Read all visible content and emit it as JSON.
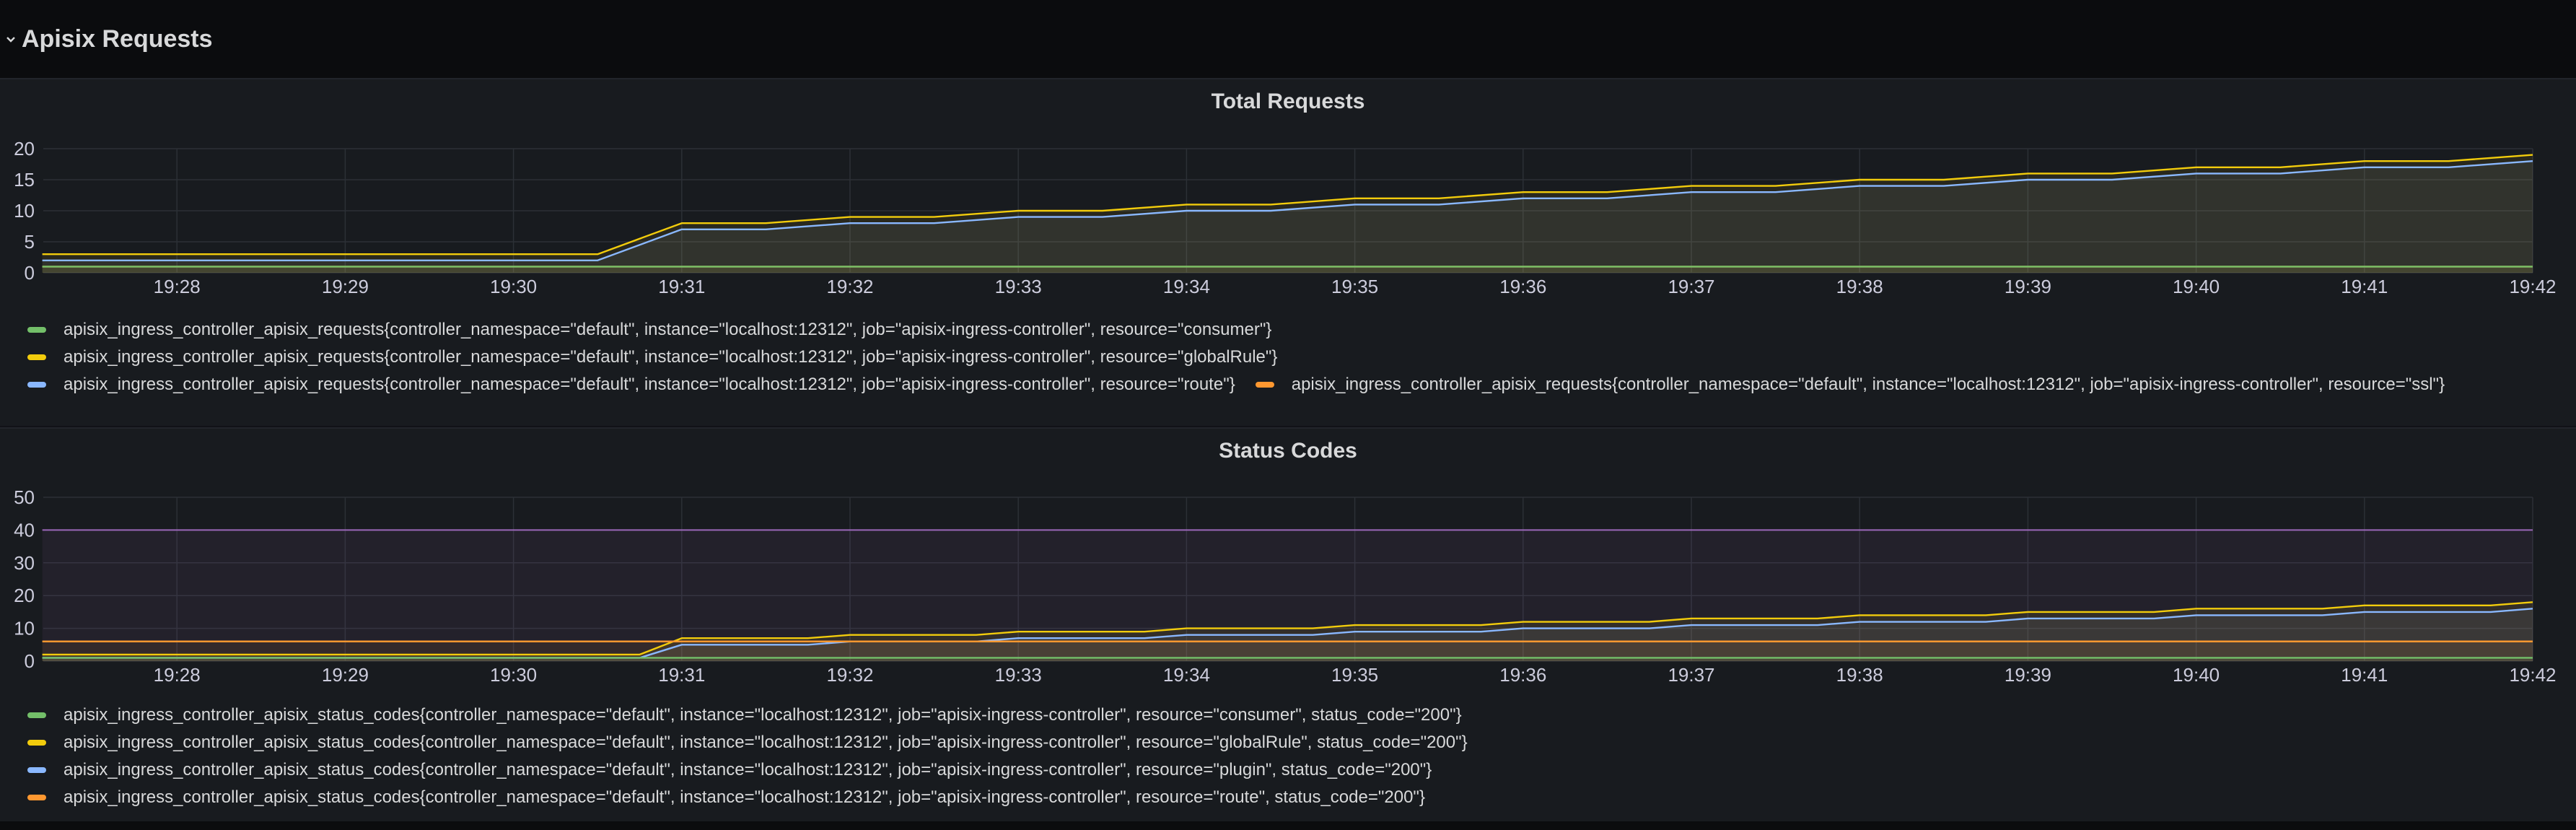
{
  "row": {
    "title": "Apisix Requests",
    "collapse_icon": "chevron-down-icon"
  },
  "colors": {
    "green": "#73bf69",
    "yellow": "#f2cc0c",
    "blue": "#8ab8ff",
    "orange": "#ff9830",
    "route_line": "#5794f2",
    "threshold": "#b877d9"
  },
  "chart_data": [
    {
      "type": "line",
      "title": "Total Requests",
      "x_ticks": [
        "19:28",
        "19:29",
        "19:30",
        "19:31",
        "19:32",
        "19:33",
        "19:34",
        "19:35",
        "19:36",
        "19:37",
        "19:38",
        "19:39",
        "19:40",
        "19:41",
        "19:42"
      ],
      "y_ticks": [
        "0",
        "5",
        "10",
        "15",
        "20"
      ],
      "ylim": [
        0,
        20
      ],
      "grid": true,
      "legend_position": "bottom",
      "x": [
        "19:27.2",
        "19:30.5",
        "19:31",
        "19:31.5",
        "19:32",
        "19:32.5",
        "19:33",
        "19:33.5",
        "19:34",
        "19:34.5",
        "19:35",
        "19:35.5",
        "19:36",
        "19:36.5",
        "19:37",
        "19:37.5",
        "19:38",
        "19:38.5",
        "19:39",
        "19:39.5",
        "19:40",
        "19:40.5",
        "19:41",
        "19:41.5",
        "19:42"
      ],
      "series": [
        {
          "name": "apisix_ingress_controller_apisix_requests{controller_namespace=\"default\", instance=\"localhost:12312\", job=\"apisix-ingress-controller\", resource=\"consumer\"}",
          "color": "#73bf69",
          "values": [
            1,
            1,
            1,
            1,
            1,
            1,
            1,
            1,
            1,
            1,
            1,
            1,
            1,
            1,
            1,
            1,
            1,
            1,
            1,
            1,
            1,
            1,
            1,
            1,
            1
          ]
        },
        {
          "name": "apisix_ingress_controller_apisix_requests{controller_namespace=\"default\", instance=\"localhost:12312\", job=\"apisix-ingress-controller\", resource=\"globalRule\"}",
          "color": "#f2cc0c",
          "values": [
            3,
            3,
            8,
            8,
            9,
            9,
            10,
            10,
            11,
            11,
            12,
            12,
            13,
            13,
            14,
            14,
            15,
            15,
            16,
            16,
            17,
            17,
            18,
            18,
            19
          ]
        },
        {
          "name": "apisix_ingress_controller_apisix_requests{controller_namespace=\"default\", instance=\"localhost:12312\", job=\"apisix-ingress-controller\", resource=\"route\"}",
          "color": "#8ab8ff",
          "values": [
            2,
            2,
            7,
            7,
            8,
            8,
            9,
            9,
            10,
            10,
            11,
            11,
            12,
            12,
            13,
            13,
            14,
            14,
            15,
            15,
            16,
            16,
            17,
            17,
            18
          ]
        },
        {
          "name": "apisix_ingress_controller_apisix_requests{controller_namespace=\"default\", instance=\"localhost:12312\", job=\"apisix-ingress-controller\", resource=\"ssl\"}",
          "color": "#ff9830",
          "values": [
            1,
            1,
            1,
            1,
            1,
            1,
            1,
            1,
            1,
            1,
            1,
            1,
            1,
            1,
            1,
            1,
            1,
            1,
            1,
            1,
            1,
            1,
            1,
            1,
            1
          ]
        }
      ]
    },
    {
      "type": "line",
      "title": "Status Codes",
      "x_ticks": [
        "19:28",
        "19:29",
        "19:30",
        "19:31",
        "19:32",
        "19:33",
        "19:34",
        "19:35",
        "19:36",
        "19:37",
        "19:38",
        "19:39",
        "19:40",
        "19:41",
        "19:42"
      ],
      "y_ticks": [
        "0",
        "10",
        "20",
        "30",
        "40",
        "50"
      ],
      "ylim": [
        0,
        50
      ],
      "grid": true,
      "legend_position": "bottom",
      "threshold": 40,
      "x": [
        "19:27.2",
        "19:30.75",
        "19:31",
        "19:31.75",
        "19:32",
        "19:32.75",
        "19:33",
        "19:33.75",
        "19:34",
        "19:34.75",
        "19:35",
        "19:35.75",
        "19:36",
        "19:36.75",
        "19:37",
        "19:37.75",
        "19:38",
        "19:38.75",
        "19:39",
        "19:39.75",
        "19:40",
        "19:40.75",
        "19:41",
        "19:41.75",
        "19:42"
      ],
      "series": [
        {
          "name": "apisix_ingress_controller_apisix_status_codes{controller_namespace=\"default\", instance=\"localhost:12312\", job=\"apisix-ingress-controller\", resource=\"consumer\", status_code=\"200\"}",
          "color": "#73bf69",
          "values": [
            1,
            1,
            1,
            1,
            1,
            1,
            1,
            1,
            1,
            1,
            1,
            1,
            1,
            1,
            1,
            1,
            1,
            1,
            1,
            1,
            1,
            1,
            1,
            1,
            1
          ]
        },
        {
          "name": "apisix_ingress_controller_apisix_status_codes{controller_namespace=\"default\", instance=\"localhost:12312\", job=\"apisix-ingress-controller\", resource=\"globalRule\", status_code=\"200\"}",
          "color": "#f2cc0c",
          "values": [
            2,
            2,
            7,
            7,
            8,
            8,
            9,
            9,
            10,
            10,
            11,
            11,
            12,
            12,
            13,
            13,
            14,
            14,
            15,
            15,
            16,
            16,
            17,
            17,
            18
          ]
        },
        {
          "name": "apisix_ingress_controller_apisix_status_codes{controller_namespace=\"default\", instance=\"localhost:12312\", job=\"apisix-ingress-controller\", resource=\"plugin\", status_code=\"200\"}",
          "color": "#8ab8ff",
          "values": [
            1,
            1,
            5,
            5,
            6,
            6,
            7,
            7,
            8,
            8,
            9,
            9,
            10,
            10,
            11,
            11,
            12,
            12,
            13,
            13,
            14,
            14,
            15,
            15,
            16
          ]
        },
        {
          "name": "apisix_ingress_controller_apisix_status_codes{controller_namespace=\"default\", instance=\"localhost:12312\", job=\"apisix-ingress-controller\", resource=\"route\", status_code=\"200\"}",
          "color": "#ff9830",
          "values": [
            6,
            6,
            6,
            6,
            6,
            6,
            6,
            6,
            6,
            6,
            6,
            6,
            6,
            6,
            6,
            6,
            6,
            6,
            6,
            6,
            6,
            6,
            6,
            6,
            6
          ]
        }
      ]
    }
  ]
}
